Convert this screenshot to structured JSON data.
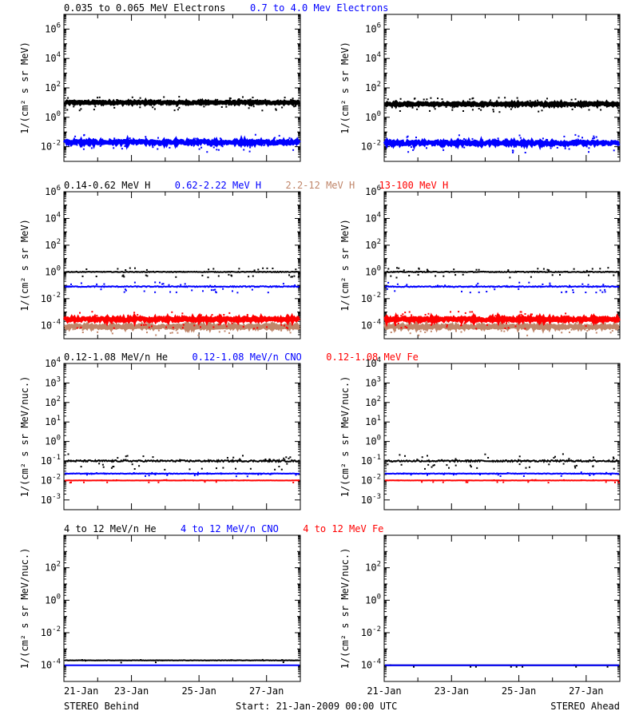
{
  "footer": {
    "left": "STEREO Behind",
    "center": "Start: 21-Jan-2009 00:00 UTC",
    "right": "STEREO Ahead"
  },
  "x_ticks": [
    "21-Jan",
    "23-Jan",
    "25-Jan",
    "27-Jan"
  ],
  "colors": {
    "black": "#000000",
    "blue": "#0000ff",
    "tan": "#c0866a",
    "red": "#ff0000"
  },
  "chart_data": [
    {
      "type": "scatter",
      "ylabel": "1/(cm² s sr MeV)",
      "ylim_log10": [
        -3,
        7
      ],
      "yticks_exp": [
        -2,
        0,
        2,
        4,
        6
      ],
      "legend": [
        {
          "name": "0.035 to 0.065 MeV Electrons",
          "color": "#000000"
        },
        {
          "name": "0.7 to 4.0 Mev Electrons",
          "color": "#0000ff"
        }
      ],
      "behind_series": [
        {
          "name": "0.035 to 0.065 MeV Electrons",
          "color": "#000000",
          "level_log10": 1.0,
          "spread": 0.12,
          "dots": 0.6
        },
        {
          "name": "0.7 to 4.0 Mev Electrons",
          "color": "#0000ff",
          "level_log10": -1.7,
          "spread": 0.18,
          "dots": 0.6
        }
      ],
      "ahead_series": [
        {
          "name": "0.035 to 0.065 MeV Electrons",
          "color": "#000000",
          "level_log10": 0.9,
          "spread": 0.12,
          "dots": 0.6
        },
        {
          "name": "0.7 to 4.0 Mev Electrons",
          "color": "#0000ff",
          "level_log10": -1.75,
          "spread": 0.18,
          "dots": 0.6
        }
      ]
    },
    {
      "type": "scatter",
      "ylabel": "1/(cm² s sr MeV)",
      "ylim_log10": [
        -5,
        6
      ],
      "yticks_exp": [
        -4,
        -2,
        0,
        2,
        4,
        6
      ],
      "legend": [
        {
          "name": "0.14-0.62 MeV H",
          "color": "#000000"
        },
        {
          "name": "0.62-2.22 MeV H",
          "color": "#0000ff"
        },
        {
          "name": "2.2-12 MeV H",
          "color": "#c0866a"
        },
        {
          "name": "13-100 MeV H",
          "color": "#ff0000"
        }
      ],
      "behind_series": [
        {
          "name": "0.14-0.62 MeV H",
          "color": "#000000",
          "level_log10": 0.0,
          "spread": 0.05,
          "dots": 0.3
        },
        {
          "name": "0.62-2.22 MeV H",
          "color": "#0000ff",
          "level_log10": -1.1,
          "spread": 0.07,
          "dots": 0.3
        },
        {
          "name": "2.2-12 MeV H",
          "color": "#c0866a",
          "level_log10": -4.1,
          "spread": 0.18,
          "dots": 0.5
        },
        {
          "name": "13-100 MeV H",
          "color": "#ff0000",
          "level_log10": -3.55,
          "spread": 0.2,
          "dots": 0.6
        }
      ],
      "ahead_series": [
        {
          "name": "0.14-0.62 MeV H",
          "color": "#000000",
          "level_log10": 0.0,
          "spread": 0.06,
          "dots": 0.3
        },
        {
          "name": "0.62-2.22 MeV H",
          "color": "#0000ff",
          "level_log10": -1.1,
          "spread": 0.07,
          "dots": 0.3
        },
        {
          "name": "2.2-12 MeV H",
          "color": "#c0866a",
          "level_log10": -4.1,
          "spread": 0.18,
          "dots": 0.5
        },
        {
          "name": "13-100 MeV H",
          "color": "#ff0000",
          "level_log10": -3.55,
          "spread": 0.2,
          "dots": 0.6
        }
      ]
    },
    {
      "type": "scatter",
      "ylabel": "1/(cm² s sr MeV/nuc.)",
      "ylim_log10": [
        -3.5,
        4
      ],
      "yticks_exp": [
        -3,
        -2,
        -1,
        0,
        1,
        2,
        3,
        4
      ],
      "legend": [
        {
          "name": "0.12-1.08 MeV/n He",
          "color": "#000000"
        },
        {
          "name": "0.12-1.08 MeV/n CNO",
          "color": "#0000ff"
        },
        {
          "name": "0.12-1.08 MeV Fe",
          "color": "#ff0000"
        }
      ],
      "behind_series": [
        {
          "name": "0.12-1.08 MeV/n He",
          "color": "#000000",
          "level_log10": -1.0,
          "spread": 0.08,
          "dots": 0.35
        },
        {
          "name": "0.12-1.08 MeV/n CNO",
          "color": "#0000ff",
          "level_log10": -1.65,
          "spread": 0.03,
          "dots": 0.18
        },
        {
          "name": "0.12-1.08 MeV Fe",
          "color": "#ff0000",
          "level_log10": -2.0,
          "spread": 0.01,
          "dots": 0.2
        }
      ],
      "ahead_series": [
        {
          "name": "0.12-1.08 MeV/n He",
          "color": "#000000",
          "level_log10": -1.0,
          "spread": 0.08,
          "dots": 0.35
        },
        {
          "name": "0.12-1.08 MeV/n CNO",
          "color": "#0000ff",
          "level_log10": -1.65,
          "spread": 0.03,
          "dots": 0.18
        },
        {
          "name": "0.12-1.08 MeV Fe",
          "color": "#ff0000",
          "level_log10": -2.0,
          "spread": 0.01,
          "dots": 0.2
        }
      ]
    },
    {
      "type": "scatter",
      "ylabel": "1/(cm² s sr MeV/nuc.)",
      "ylim_log10": [
        -5,
        4
      ],
      "yticks_exp": [
        -4,
        -2,
        0,
        2
      ],
      "legend": [
        {
          "name": "4 to 12 MeV/n He",
          "color": "#000000"
        },
        {
          "name": "4 to 12 MeV/n CNO",
          "color": "#0000ff"
        },
        {
          "name": "4 to 12 MeV Fe",
          "color": "#ff0000"
        }
      ],
      "behind_series": [
        {
          "name": "4 to 12 MeV/n He",
          "color": "#000000",
          "level_log10": -3.7,
          "spread": 0.02,
          "dots": 0.1
        },
        {
          "name": "4 to 12 MeV/n CNO",
          "color": "#0000ff",
          "level_log10": -4.0,
          "spread": 0.0,
          "dots": 0.0
        }
      ],
      "ahead_series": [
        {
          "name": "4 to 12 MeV/n He",
          "color": "#000000",
          "level_log10": -4.0,
          "spread": 0.0,
          "dots": 0.08
        },
        {
          "name": "4 to 12 MeV/n CNO",
          "color": "#0000ff",
          "level_log10": -4.0,
          "spread": 0.0,
          "dots": 0.0
        }
      ]
    }
  ]
}
